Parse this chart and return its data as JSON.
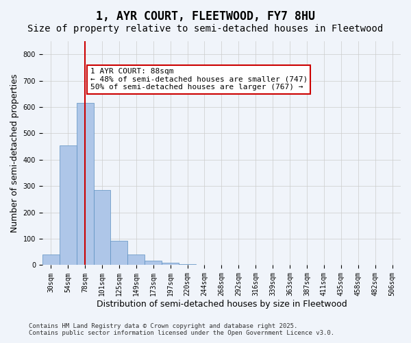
{
  "title_line1": "1, AYR COURT, FLEETWOOD, FY7 8HU",
  "title_line2": "Size of property relative to semi-detached houses in Fleetwood",
  "xlabel": "Distribution of semi-detached houses by size in Fleetwood",
  "ylabel": "Number of semi-detached properties",
  "categories": [
    "30sqm",
    "54sqm",
    "78sqm",
    "101sqm",
    "125sqm",
    "149sqm",
    "173sqm",
    "197sqm",
    "220sqm",
    "244sqm",
    "268sqm",
    "292sqm",
    "316sqm",
    "339sqm",
    "363sqm",
    "387sqm",
    "411sqm",
    "435sqm",
    "458sqm",
    "482sqm",
    "506sqm"
  ],
  "values": [
    40,
    455,
    615,
    285,
    93,
    40,
    18,
    8,
    3,
    0,
    0,
    0,
    0,
    0,
    0,
    0,
    0,
    0,
    0,
    0,
    0
  ],
  "bar_color": "#aec6e8",
  "bar_edge_color": "#5a8fc0",
  "grid_color": "#cccccc",
  "background_color": "#f0f4fa",
  "annotation_box_color": "#cc0000",
  "annotation_line_color": "#cc0000",
  "property_size": 88,
  "property_label": "1 AYR COURT: 88sqm",
  "smaller_pct": 48,
  "smaller_count": 747,
  "larger_pct": 50,
  "larger_count": 767,
  "vline_x_index": 2,
  "ylim": [
    0,
    850
  ],
  "yticks": [
    0,
    100,
    200,
    300,
    400,
    500,
    600,
    700,
    800
  ],
  "footnote_line1": "Contains HM Land Registry data © Crown copyright and database right 2025.",
  "footnote_line2": "Contains public sector information licensed under the Open Government Licence v3.0.",
  "title_fontsize": 12,
  "subtitle_fontsize": 10,
  "axis_label_fontsize": 9,
  "tick_fontsize": 7,
  "annotation_fontsize": 8,
  "footnote_fontsize": 6.5
}
